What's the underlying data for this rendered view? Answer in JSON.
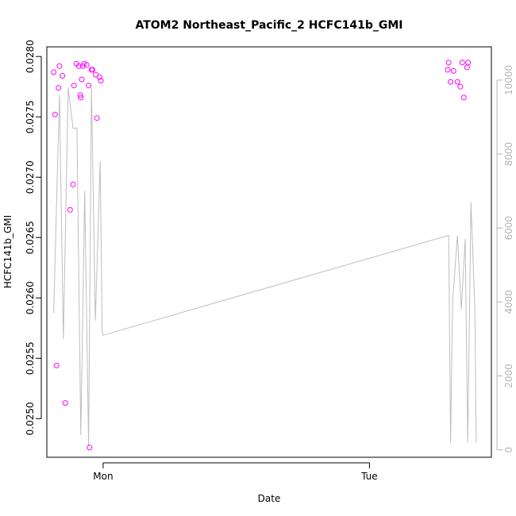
{
  "chart_data": {
    "type": "scatter",
    "title": "ATOM2 Northeast_Pacific_2 HCFC141b_GMI",
    "xlabel": "Date",
    "ylabel": "HCFC141b_GMI",
    "x_ticks": [
      "Mon",
      "Tue"
    ],
    "x_range_hours": [
      -2.9,
      20.0
    ],
    "y_left": {
      "ylim": [
        0.02468,
        0.02808
      ],
      "ticks": [
        "0.0250",
        "0.0255",
        "0.0260",
        "0.0265",
        "0.0270",
        "0.0275",
        "0.0280"
      ]
    },
    "y_right": {
      "ylim": [
        -200,
        10900
      ],
      "ticks": [
        "0",
        "2000",
        "4000",
        "6000",
        "8000",
        "10000"
      ]
    },
    "grid": false,
    "colors": {
      "points": "#ff00ff",
      "line": "#bebebe",
      "right_axis": "#b3b3b3"
    },
    "series": [
      {
        "type": "scatter",
        "axis": "left",
        "points": [
          [
            -2.55,
            0.02787
          ],
          [
            -2.48,
            0.02752
          ],
          [
            -2.4,
            0.02544
          ],
          [
            -2.3,
            0.02774
          ],
          [
            -2.25,
            0.02792
          ],
          [
            -2.1,
            0.02784
          ],
          [
            -1.95,
            0.02513
          ],
          [
            -1.7,
            0.02673
          ],
          [
            -1.55,
            0.02694
          ],
          [
            -1.5,
            0.02776
          ],
          [
            -1.38,
            0.02794
          ],
          [
            -1.25,
            0.02792
          ],
          [
            -1.18,
            0.02768
          ],
          [
            -1.15,
            0.02766
          ],
          [
            -1.1,
            0.02781
          ],
          [
            -1.05,
            0.02792
          ],
          [
            -0.98,
            0.02794
          ],
          [
            -0.85,
            0.02793
          ],
          [
            -0.75,
            0.02776
          ],
          [
            -0.7,
            0.02476
          ],
          [
            -0.6,
            0.02789
          ],
          [
            -0.55,
            0.02789
          ],
          [
            -0.38,
            0.02785
          ],
          [
            -0.32,
            0.02749
          ],
          [
            -0.18,
            0.02783
          ],
          [
            -0.12,
            0.0278
          ],
          [
            17.75,
            0.02789
          ],
          [
            17.8,
            0.02795
          ],
          [
            17.9,
            0.02779
          ],
          [
            18.05,
            0.02788
          ],
          [
            18.25,
            0.02779
          ],
          [
            18.4,
            0.02775
          ],
          [
            18.5,
            0.02795
          ],
          [
            18.58,
            0.02766
          ],
          [
            18.75,
            0.02791
          ],
          [
            18.8,
            0.02795
          ]
        ]
      },
      {
        "type": "line",
        "axis": "right",
        "points": [
          [
            -2.55,
            3700
          ],
          [
            -2.25,
            9600
          ],
          [
            -2.05,
            3000
          ],
          [
            -1.8,
            9800
          ],
          [
            -1.55,
            8700
          ],
          [
            -1.35,
            8700
          ],
          [
            -1.15,
            400
          ],
          [
            -0.95,
            7000
          ],
          [
            -0.75,
            100
          ],
          [
            -0.6,
            9800
          ],
          [
            -0.4,
            3500
          ],
          [
            -0.15,
            7800
          ],
          [
            -0.05,
            3200
          ],
          [
            0.0,
            3100
          ],
          [
            17.8,
            5800
          ],
          [
            17.9,
            200
          ],
          [
            18.0,
            4000
          ],
          [
            18.25,
            5800
          ],
          [
            18.45,
            3800
          ],
          [
            18.65,
            5700
          ],
          [
            18.78,
            200
          ],
          [
            18.95,
            6700
          ],
          [
            19.15,
            3800
          ],
          [
            19.22,
            200
          ]
        ]
      }
    ]
  }
}
